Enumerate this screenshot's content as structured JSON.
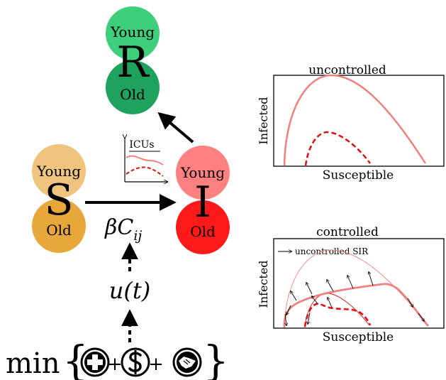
{
  "compartments": {
    "R": {
      "letter": "R",
      "top_label": "Young",
      "bottom_label": "Old",
      "top_color": "#3ecf7c",
      "bottom_color": "#1ea35e"
    },
    "S": {
      "letter": "S",
      "top_label": "Young",
      "bottom_label": "Old",
      "top_color": "#efc47e",
      "bottom_color": "#e8a73a"
    },
    "I": {
      "letter": "I",
      "top_label": "Young",
      "bottom_label": "Old",
      "top_color": "#ff8080",
      "bottom_color": "#ff1a1a"
    }
  },
  "icu_inset": {
    "label": "ICUs"
  },
  "transmission_label": "βC",
  "transmission_sub": "ij",
  "control_label": "u(t)",
  "objective": {
    "min_label": "min",
    "plus_1": "+",
    "plus_2": "+",
    "icons": [
      "health-cross-icon",
      "dollar-icon",
      "handshake-icon"
    ]
  },
  "plots": [
    {
      "title": "uncontrolled",
      "xlabel": "Susceptible",
      "ylabel": "Infected"
    },
    {
      "title": "controlled",
      "xlabel": "Susceptible",
      "ylabel": "Infected",
      "legend": "uncontrolled SIR"
    }
  ],
  "colors": {
    "curve": "#f08080",
    "curve_dashed": "#e01010",
    "arrow": "#000000"
  }
}
